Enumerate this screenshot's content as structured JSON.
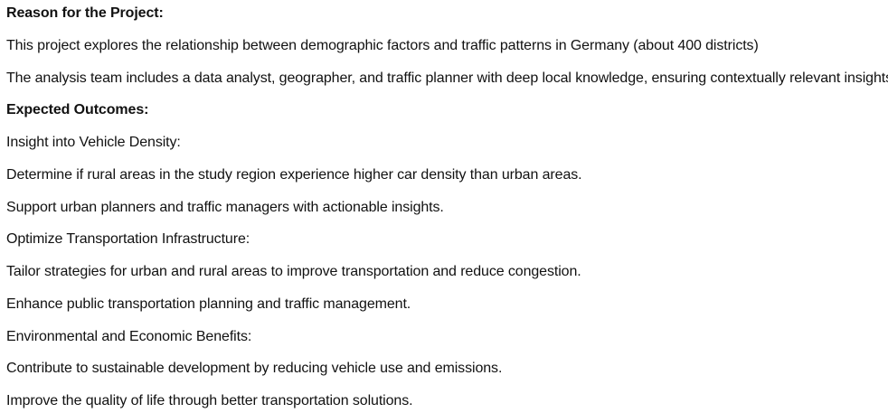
{
  "document": {
    "lines": [
      {
        "text": "Reason for the Project:",
        "style": "bold-heading"
      },
      {
        "text": "This project explores the relationship between demographic factors and traffic patterns in Germany (about 400 districts)",
        "style": "paragraph"
      },
      {
        "text": "The analysis team includes a data analyst, geographer, and traffic planner with deep local knowledge, ensuring contextually relevant insights.",
        "style": "paragraph"
      },
      {
        "text": "Expected Outcomes:",
        "style": "bold-heading"
      },
      {
        "text": "Insight into Vehicle Density:",
        "style": "paragraph"
      },
      {
        "text": "Determine if rural areas in the study region experience higher car density than urban areas.",
        "style": "paragraph"
      },
      {
        "text": "Support urban planners and traffic managers with actionable insights.",
        "style": "paragraph"
      },
      {
        "text": "Optimize Transportation Infrastructure:",
        "style": "paragraph"
      },
      {
        "text": "Tailor strategies for urban and rural areas to improve transportation and reduce congestion.",
        "style": "paragraph"
      },
      {
        "text": "Enhance public transportation planning and traffic management.",
        "style": "paragraph"
      },
      {
        "text": "Environmental and Economic Benefits:",
        "style": "paragraph"
      },
      {
        "text": "Contribute to sustainable development by reducing vehicle use and emissions.",
        "style": "paragraph"
      },
      {
        "text": "Improve the quality of life through better transportation solutions.",
        "style": "paragraph"
      }
    ]
  },
  "colors": {
    "text": "#111111",
    "background": "#ffffff"
  }
}
